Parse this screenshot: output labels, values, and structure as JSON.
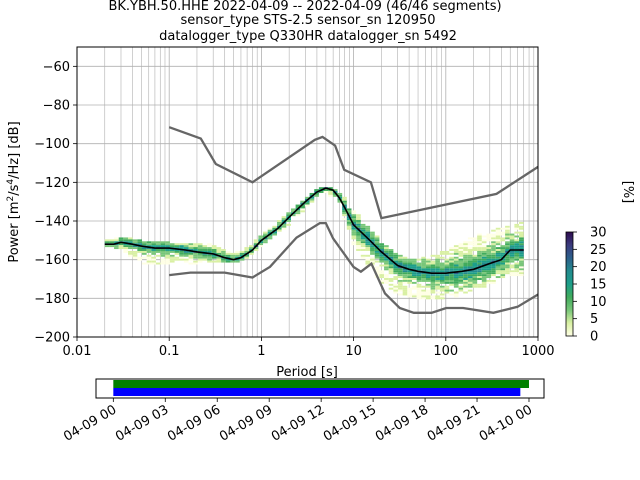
{
  "title_lines": [
    "BK.YBH.50.HHE   2022-04-09 -- 2022-04-09  (46/46 segments)",
    "sensor_type STS-2.5 sensor_sn 120950",
    "datalogger_type Q330HR datalogger_sn 5492"
  ],
  "chart_data": [
    {
      "type": "heatmap",
      "xlabel": "Period [s]",
      "ylabel": "Power [m²/s⁴/Hz] [dB]",
      "ylabel_parts": {
        "base": "Power [m",
        "sup1": "2",
        "mid": "/s",
        "sup2": "4",
        "end": "/Hz] [dB]"
      },
      "xscale": "log",
      "xlim": [
        0.01,
        1000
      ],
      "ylim": [
        -200,
        -50
      ],
      "xticks": [
        0.01,
        0.1,
        1,
        10,
        100,
        1000
      ],
      "xtick_labels": [
        "0.01",
        "0.1",
        "1",
        "10",
        "100",
        "1000"
      ],
      "yticks": [
        -200,
        -180,
        -160,
        -140,
        -120,
        -100,
        -80,
        -60
      ],
      "ytick_labels": [
        "−200",
        "−180",
        "−160",
        "−140",
        "−120",
        "−100",
        "−80",
        "−60"
      ],
      "grid": true,
      "colorbar": {
        "label": "[%]",
        "min": 0,
        "max": 30,
        "ticks": [
          0,
          5,
          10,
          15,
          20,
          25,
          30
        ],
        "tick_labels": [
          "0",
          "5",
          "10",
          "15",
          "20",
          "25",
          "30"
        ],
        "colors": [
          "#ffffe5",
          "#d9f0a3",
          "#78c679",
          "#41ab5d",
          "#1d9e8a",
          "#238b8e",
          "#2c5f8a",
          "#3b3b7d",
          "#2d0a4e"
        ]
      },
      "mode_curve": {
        "color": "#000000",
        "x": [
          0.02,
          0.025,
          0.03,
          0.04,
          0.05,
          0.07,
          0.1,
          0.15,
          0.2,
          0.3,
          0.4,
          0.5,
          0.6,
          0.8,
          1,
          1.5,
          2,
          3,
          4,
          5,
          6,
          7,
          8,
          10,
          15,
          20,
          30,
          40,
          50,
          70,
          100,
          150,
          200,
          300,
          400,
          500,
          700
        ],
        "y": [
          -152,
          -152,
          -151,
          -152,
          -153,
          -154,
          -154,
          -155,
          -156,
          -157,
          -159,
          -160,
          -159,
          -155,
          -150,
          -144,
          -138,
          -130,
          -125,
          -123,
          -124,
          -128,
          -133,
          -142,
          -150,
          -156,
          -163,
          -165,
          -166,
          -167,
          -167,
          -166,
          -165,
          -162,
          -160,
          -155,
          -155
        ]
      },
      "noise_models": {
        "color": "#666666",
        "high": {
          "x": [
            0.1,
            0.22,
            0.32,
            0.8,
            3.8,
            4.6,
            6.3,
            7.9,
            15.4,
            20,
            354.8,
            1000
          ],
          "y": [
            -91.5,
            -97.4,
            -110.5,
            -120,
            -98,
            -96.5,
            -101,
            -113.5,
            -120,
            -138.5,
            -126,
            -112
          ]
        },
        "low": {
          "x": [
            0.1,
            0.17,
            0.4,
            0.8,
            1.24,
            2.4,
            4.3,
            5,
            6,
            10,
            12,
            15.6,
            21.9,
            31.6,
            45,
            70,
            101,
            154,
            328,
            600,
            1000
          ],
          "y": [
            -168,
            -166.7,
            -166.7,
            -169.2,
            -163.7,
            -148.6,
            -141.1,
            -141.1,
            -149,
            -163.8,
            -166.2,
            -162.1,
            -177.5,
            -185,
            -187.5,
            -187.5,
            -185,
            -185,
            -187.5,
            -184.4,
            -178
          ]
        }
      },
      "psd_band": {
        "x": [
          0.02,
          0.03,
          0.05,
          0.1,
          0.2,
          0.3,
          0.5,
          0.8,
          1,
          2,
          4,
          5,
          7,
          10,
          15,
          20,
          30,
          50,
          100,
          200,
          300,
          500,
          700
        ],
        "y_low": [
          -153,
          -155,
          -162,
          -162,
          -162,
          -161,
          -162,
          -158,
          -153,
          -142,
          -128,
          -125,
          -132,
          -152,
          -165,
          -172,
          -178,
          -180,
          -181,
          -176,
          -173,
          -168,
          -168
        ],
        "y_high": [
          -150,
          -148,
          -150,
          -151,
          -152,
          -152,
          -157,
          -152,
          -147,
          -135,
          -123,
          -122,
          -124,
          -134,
          -144,
          -150,
          -157,
          -160,
          -155,
          -148,
          -145,
          -142,
          -140
        ]
      }
    },
    {
      "type": "timeline",
      "xlim": [
        "2022-04-08 23:00",
        "2022-04-10 00:52"
      ],
      "xtick_labels": [
        "04-09 00",
        "04-09 03",
        "04-09 06",
        "04-09 09",
        "04-09 12",
        "04-09 15",
        "04-09 18",
        "04-09 21",
        "04-10 00"
      ],
      "xtick_times": [
        "2022-04-09 00:00",
        "2022-04-09 03:00",
        "2022-04-09 06:00",
        "2022-04-09 09:00",
        "2022-04-09 12:00",
        "2022-04-09 15:00",
        "2022-04-09 18:00",
        "2022-04-09 21:00",
        "2022-04-10 00:00"
      ],
      "bars": [
        {
          "color": "#008000",
          "start": "2022-04-09 00:00",
          "end": "2022-04-10 00:00"
        },
        {
          "color": "#0000ff",
          "start": "2022-04-09 00:00",
          "end": "2022-04-09 23:30"
        }
      ]
    }
  ]
}
